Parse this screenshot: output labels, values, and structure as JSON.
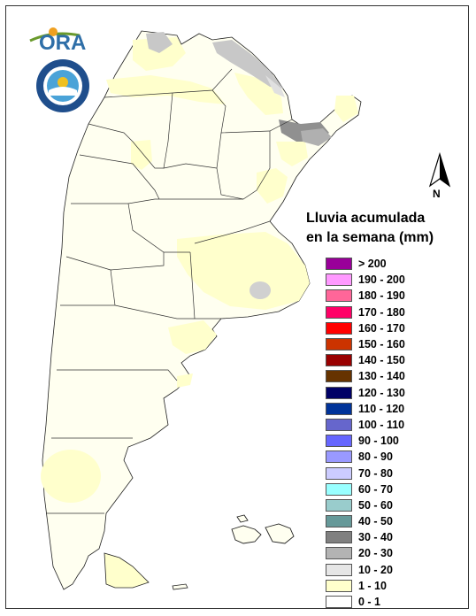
{
  "logos": {
    "ora_text": "ORA",
    "smn_name": "icon-smn-seal"
  },
  "north": {
    "label": "N",
    "icon": "north-arrow-icon"
  },
  "legend": {
    "title_line1": "Lluvia acumulada",
    "title_line2": "en la semana (mm)",
    "items": [
      {
        "label": "> 200",
        "color": "#990099"
      },
      {
        "label": "190 - 200",
        "color": "#ff99ff"
      },
      {
        "label": "180 - 190",
        "color": "#ff6699"
      },
      {
        "label": "170 - 180",
        "color": "#ff0066"
      },
      {
        "label": "160 - 170",
        "color": "#ff0000"
      },
      {
        "label": "150 - 160",
        "color": "#cc3300"
      },
      {
        "label": "140 - 150",
        "color": "#990000"
      },
      {
        "label": "130 - 140",
        "color": "#663300"
      },
      {
        "label": "120 - 130",
        "color": "#000066"
      },
      {
        "label": "110 - 120",
        "color": "#003399"
      },
      {
        "label": "100 - 110",
        "color": "#6666cc"
      },
      {
        "label": "90 - 100",
        "color": "#6666ff"
      },
      {
        "label": "80 - 90",
        "color": "#9999ff"
      },
      {
        "label": "70 - 80",
        "color": "#ccccff"
      },
      {
        "label": "60 - 70",
        "color": "#99ffff"
      },
      {
        "label": "50 - 60",
        "color": "#99cccc"
      },
      {
        "label": "40 - 50",
        "color": "#669999"
      },
      {
        "label": "30 - 40",
        "color": "#808080"
      },
      {
        "label": "20 - 30",
        "color": "#b3b3b3"
      },
      {
        "label": "10 - 20",
        "color": "#e6e6e6"
      },
      {
        "label": "1 - 10",
        "color": "#ffffcc"
      },
      {
        "label": "0 - 1",
        "color": "#ffffff"
      }
    ]
  },
  "map": {
    "base_color": "#fffff0",
    "light_rain_color": "#ffffcc",
    "gray_light": "#e0e0e0",
    "gray_mid": "#c0c0c0",
    "gray_dark": "#909090"
  }
}
